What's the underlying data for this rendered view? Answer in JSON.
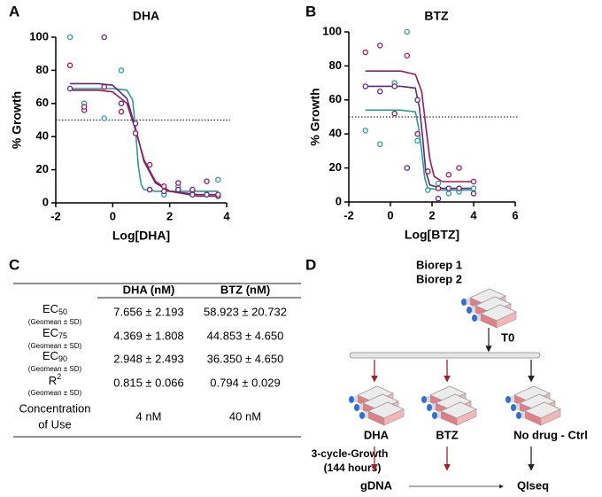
{
  "panel_labels": [
    "A",
    "B",
    "C",
    "D"
  ],
  "chart_data": [
    {
      "type": "scatter",
      "title": "DHA",
      "x_label": "Log[DHA]",
      "y_label": "% Growth",
      "xlim": [
        -2,
        4
      ],
      "xticks": [
        -2,
        0,
        2,
        4
      ],
      "ylim": [
        0,
        100
      ],
      "yticks": [
        0,
        20,
        40,
        60,
        80,
        100
      ],
      "reference_line": 50,
      "series": [
        {
          "color": "#2a9d8f",
          "x": [
            -1.5,
            -1.0,
            -0.3,
            0.3,
            0.8,
            1.3,
            1.8,
            2.3,
            2.8,
            3.3,
            3.7
          ],
          "values": [
            100,
            60,
            51,
            80,
            42,
            8,
            5,
            10,
            7,
            5,
            14
          ]
        },
        {
          "color": "#5b2a86",
          "x": [
            -1.5,
            -1.0,
            -0.3,
            0.3,
            0.8,
            1.3,
            1.8,
            2.3,
            2.8,
            3.3,
            3.7
          ],
          "values": [
            69,
            56,
            100,
            60,
            48,
            8,
            7,
            8,
            5,
            5,
            4
          ]
        },
        {
          "color": "#9b1b5a",
          "x": [
            -1.5,
            -1.0,
            -0.3,
            0.3,
            0.8,
            1.3,
            1.8,
            2.3,
            2.8,
            3.3,
            3.7
          ],
          "values": [
            83,
            58,
            70,
            55,
            42,
            23,
            10,
            12,
            8,
            13,
            5
          ]
        }
      ],
      "fits": [
        {
          "color": "#2a9d8f",
          "x": [
            -1.5,
            0,
            0.5,
            0.7,
            0.8,
            0.9,
            1.0,
            1.1,
            1.5,
            3.7
          ],
          "values": [
            69,
            69,
            68,
            62,
            44,
            22,
            11,
            8,
            7,
            7
          ]
        },
        {
          "color": "#5b2a86",
          "x": [
            -1.5,
            -0.5,
            0,
            0.5,
            0.8,
            1.1,
            1.5,
            2,
            3,
            3.7
          ],
          "values": [
            72,
            72,
            71,
            63,
            45,
            25,
            12,
            7,
            5,
            5
          ]
        },
        {
          "color": "#9b1b5a",
          "x": [
            -1.5,
            -0.5,
            0,
            0.5,
            0.8,
            1.1,
            1.5,
            2,
            3,
            3.7
          ],
          "values": [
            68,
            68,
            67,
            60,
            44,
            26,
            13,
            7,
            4,
            4
          ]
        }
      ]
    },
    {
      "type": "scatter",
      "title": "BTZ",
      "x_label": "Log[BTZ]",
      "y_label": "% Growth",
      "xlim": [
        -2,
        6
      ],
      "xticks": [
        -2,
        0,
        2,
        4,
        6
      ],
      "ylim": [
        0,
        100
      ],
      "yticks": [
        0,
        20,
        40,
        60,
        80,
        100
      ],
      "reference_line": 50,
      "series": [
        {
          "color": "#2a9d8f",
          "x": [
            -1.2,
            -0.5,
            0.2,
            0.8,
            1.3,
            1.8,
            2.3,
            2.8,
            3.3,
            4
          ],
          "values": [
            42,
            34,
            70,
            100,
            36,
            7,
            11,
            5,
            6,
            8
          ]
        },
        {
          "color": "#5b2a86",
          "x": [
            -1.2,
            -0.5,
            0.2,
            0.8,
            1.3,
            1.8,
            2.3,
            2.8,
            3.3,
            4
          ],
          "values": [
            68,
            65,
            68,
            20,
            60,
            18,
            2,
            8,
            8,
            5
          ]
        },
        {
          "color": "#9b1b5a",
          "x": [
            -1.2,
            -0.5,
            0.2,
            0.8,
            1.3,
            1.8,
            2.3,
            2.8,
            3.3,
            4
          ],
          "values": [
            88,
            92,
            52,
            86,
            40,
            18,
            8,
            16,
            20,
            12
          ]
        }
      ],
      "fits": [
        {
          "color": "#9b1b5a",
          "x": [
            -1.2,
            0.5,
            1.2,
            1.5,
            1.7,
            1.9,
            2.1,
            2.5,
            4
          ],
          "values": [
            77,
            77,
            75,
            65,
            45,
            25,
            15,
            12,
            12
          ]
        },
        {
          "color": "#5b2a86",
          "x": [
            -1.2,
            0.5,
            1.2,
            1.4,
            1.55,
            1.7,
            1.9,
            2.5,
            4
          ],
          "values": [
            68,
            68,
            67,
            55,
            38,
            18,
            10,
            8,
            8
          ]
        },
        {
          "color": "#2a9d8f",
          "x": [
            -1.2,
            0.5,
            1.2,
            1.35,
            1.5,
            1.65,
            1.8,
            2.5,
            4
          ],
          "values": [
            54,
            54,
            53,
            44,
            30,
            14,
            8,
            7,
            7
          ]
        }
      ]
    }
  ],
  "table": {
    "header": [
      "DHA (nM)",
      "BTZ (nM)"
    ],
    "rows": [
      {
        "label": "EC",
        "label_sub": "50",
        "note": "(Geomean ± SD)",
        "cells": [
          "7.656 ± 2.193",
          "58.923 ± 20.732"
        ]
      },
      {
        "label": "EC",
        "label_sub": "75",
        "note": "(Geomean ± SD)",
        "cells": [
          "4.369 ± 1.808",
          "44.853 ± 4.650"
        ]
      },
      {
        "label": "EC",
        "label_sub": "90",
        "note": "(Geomean ± SD)",
        "cells": [
          "2.948 ± 2.493",
          "36.350 ± 4.650"
        ]
      },
      {
        "label": "R",
        "label_sup": "2",
        "note": "(Geomean ± SD)",
        "cells": [
          "0.815 ± 0.066",
          "0.794 ± 0.029"
        ]
      },
      {
        "label_lines": [
          "Concentration",
          "of Use"
        ],
        "cells": [
          "4 nM",
          "40 nM"
        ]
      }
    ]
  },
  "diagram": {
    "biorep": [
      "Biorep 1",
      "Biorep 2"
    ],
    "t0": "T0",
    "arms": [
      "DHA",
      "BTZ",
      "No drug - Ctrl"
    ],
    "growth": [
      "3-cycle-Growth",
      "(144 hours)"
    ],
    "outputs": [
      "gDNA",
      "QIseq"
    ]
  }
}
